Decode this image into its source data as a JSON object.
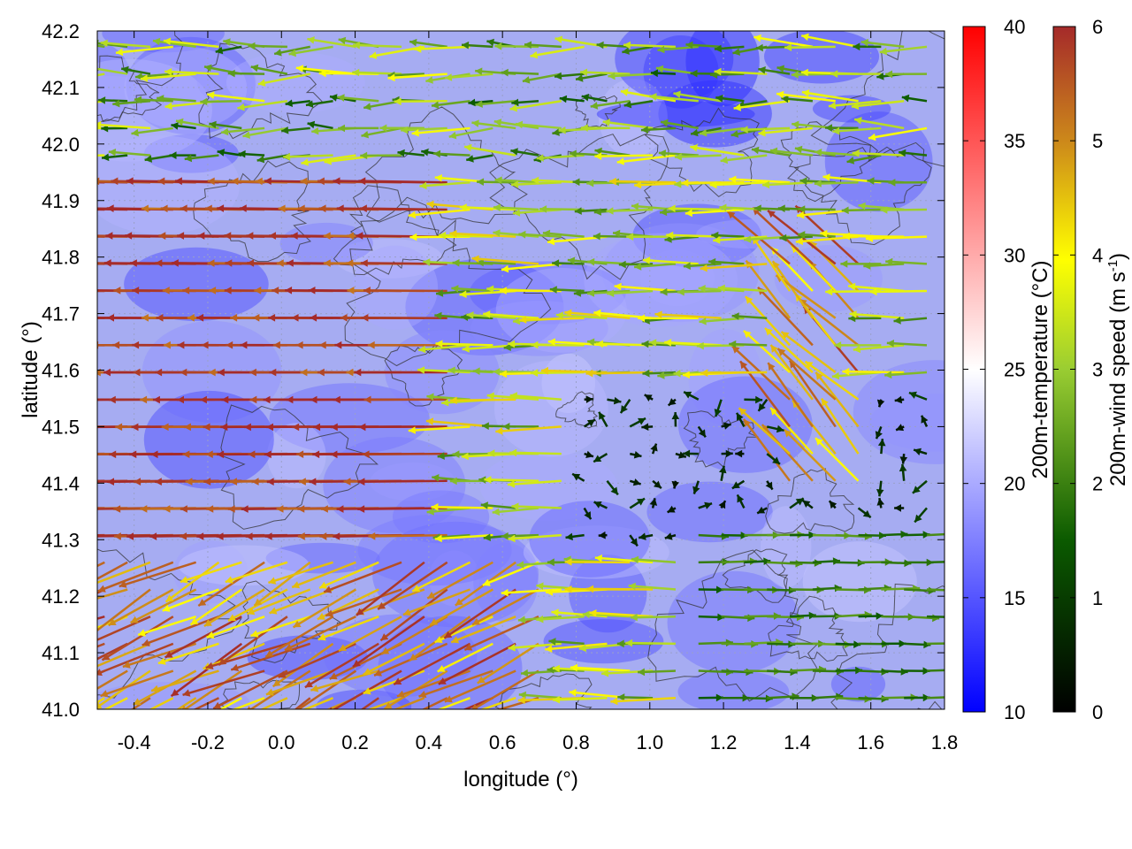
{
  "chart_data": {
    "type": "vector-field",
    "title": "",
    "xlabel": "longitude (°)",
    "ylabel": "latitude (°)",
    "xlim": [
      -0.5,
      1.8
    ],
    "ylim": [
      41.0,
      42.2
    ],
    "xticks": [
      "-0.4",
      "-0.2",
      "0.0",
      "0.2",
      "0.4",
      "0.6",
      "0.8",
      "1.0",
      "1.2",
      "1.4",
      "1.6",
      "1.8"
    ],
    "yticks": [
      "41.0",
      "41.1",
      "41.2",
      "41.3",
      "41.4",
      "41.5",
      "41.6",
      "41.7",
      "41.8",
      "41.9",
      "42.0",
      "42.1",
      "42.2"
    ],
    "grid": true,
    "field": "200m-temperature shaded, terrain contours, 200m-wind vectors colored by speed",
    "temperature_colorbar": {
      "label": "200m-temperature (°C)",
      "range": [
        10,
        40
      ],
      "ticks": [
        "10",
        "15",
        "20",
        "25",
        "30",
        "35",
        "40"
      ],
      "colors": [
        "#0000ff",
        "#ffffff",
        "#ff0000"
      ]
    },
    "wind_colorbar": {
      "label_text": "200m-wind speed (m s",
      "label_sup": "-1",
      "label_tail": ")",
      "range": [
        0,
        6
      ],
      "ticks": [
        "0",
        "1",
        "2",
        "3",
        "4",
        "5",
        "6"
      ],
      "colors": [
        "#000000",
        "#006400",
        "#ffff00",
        "#cd853f",
        "#a52a2a"
      ]
    },
    "background_temperature_range": [
      14,
      22
    ]
  }
}
